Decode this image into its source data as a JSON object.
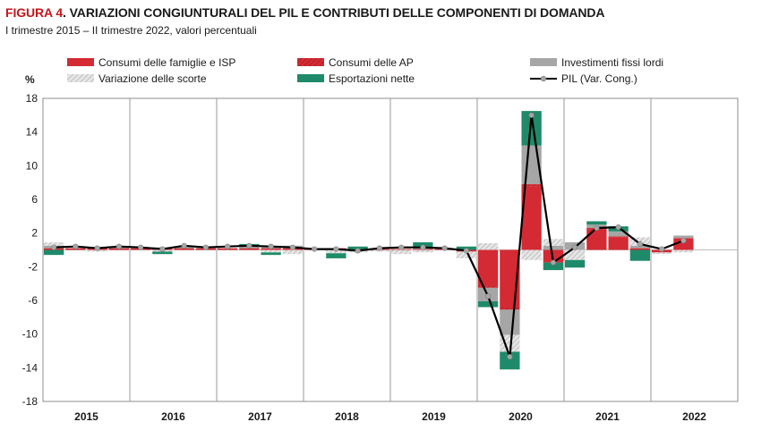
{
  "header": {
    "figure_label": "FIGURA 4",
    "title": ". VARIAZIONI CONGIUNTURALI DEL PIL E CONTRIBUTI DELLE COMPONENTI DI DOMANDA",
    "subtitle": "I trimestre 2015 – II trimestre 2022, valori percentuali"
  },
  "colors": {
    "consumi_famiglie": "#d42a33",
    "consumi_ap": "#c8333a",
    "investimenti": "#a6a6a6",
    "scorte": "#d4d4d4",
    "esportazioni": "#1f8a6a",
    "pil": "#000000"
  },
  "chart_data": {
    "type": "bar",
    "ylabel": "%",
    "ylim": [
      -18,
      18
    ],
    "yticks": [
      18,
      14,
      10,
      6,
      2,
      -2,
      -6,
      -10,
      -14,
      -18
    ],
    "years": [
      "2015",
      "2016",
      "2017",
      "2018",
      "2019",
      "2020",
      "2021",
      "2022"
    ],
    "grid": "vertical lines between years",
    "legend_position": "top",
    "categories": [
      "2015Q1",
      "2015Q2",
      "2015Q3",
      "2015Q4",
      "2016Q1",
      "2016Q2",
      "2016Q3",
      "2016Q4",
      "2017Q1",
      "2017Q2",
      "2017Q3",
      "2017Q4",
      "2018Q1",
      "2018Q2",
      "2018Q3",
      "2018Q4",
      "2019Q1",
      "2019Q2",
      "2019Q3",
      "2019Q4",
      "2020Q1",
      "2020Q2",
      "2020Q3",
      "2020Q4",
      "2021Q1",
      "2021Q2",
      "2021Q3",
      "2021Q4",
      "2022Q1",
      "2022Q2"
    ],
    "series": [
      {
        "name": "Consumi delle famiglie e ISP",
        "key": "consumi_famiglie",
        "kind": "bar",
        "values": [
          0.2,
          0.2,
          0.2,
          0.2,
          0.2,
          0.2,
          0.2,
          0.2,
          0.2,
          0.2,
          0.2,
          0.2,
          0.2,
          0.2,
          0.0,
          0.1,
          0.1,
          0.1,
          0.1,
          -0.2,
          -4.2,
          -6.8,
          7.5,
          -1.5,
          0.0,
          2.4,
          1.5,
          0.2,
          -0.3,
          1.4
        ]
      },
      {
        "name": "Consumi delle AP",
        "key": "consumi_ap",
        "kind": "bar",
        "values": [
          0.0,
          0.0,
          0.0,
          0.0,
          0.0,
          0.0,
          0.0,
          0.0,
          0.0,
          0.0,
          0.0,
          0.0,
          0.0,
          0.0,
          0.0,
          0.0,
          0.0,
          0.0,
          0.0,
          0.0,
          -0.3,
          -0.3,
          0.3,
          0.0,
          0.0,
          0.2,
          0.1,
          0.0,
          0.0,
          0.0
        ]
      },
      {
        "name": "Investimenti fissi lordi",
        "key": "investimenti",
        "kind": "bar",
        "values": [
          0.3,
          0.0,
          0.0,
          0.2,
          0.1,
          0.1,
          0.2,
          0.2,
          0.0,
          0.3,
          0.3,
          0.3,
          0.0,
          0.0,
          0.0,
          0.0,
          0.0,
          0.1,
          0.1,
          0.0,
          -1.6,
          -3.0,
          4.6,
          0.5,
          0.9,
          0.4,
          0.6,
          0.3,
          0.0,
          0.3
        ]
      },
      {
        "name": "Variazione delle scorte",
        "key": "scorte",
        "kind": "bar",
        "values": [
          0.4,
          0.0,
          -0.2,
          0.0,
          0.0,
          -0.2,
          0.0,
          0.0,
          0.0,
          0.0,
          -0.3,
          -0.5,
          0.0,
          -0.4,
          -0.3,
          -0.2,
          -0.5,
          -0.3,
          0.0,
          -0.8,
          0.8,
          -2.0,
          -1.2,
          0.8,
          -1.2,
          0.0,
          0.0,
          1.0,
          -0.2,
          -0.3
        ]
      },
      {
        "name": "Esportazioni nette",
        "key": "esportazioni",
        "kind": "bar",
        "values": [
          -0.6,
          0.0,
          0.0,
          0.0,
          0.0,
          -0.3,
          0.0,
          0.0,
          0.0,
          0.2,
          -0.3,
          0.0,
          0.0,
          -0.6,
          0.4,
          0.0,
          0.0,
          0.7,
          0.0,
          0.4,
          -0.7,
          -2.1,
          4.1,
          -0.9,
          -0.9,
          0.4,
          0.6,
          -1.3,
          0.0,
          0.0
        ]
      },
      {
        "name": "PIL (Var. Cong.)",
        "key": "pil",
        "kind": "line",
        "values": [
          0.3,
          0.4,
          0.2,
          0.4,
          0.3,
          0.1,
          0.5,
          0.3,
          0.4,
          0.5,
          0.4,
          0.3,
          0.1,
          0.1,
          -0.1,
          0.2,
          0.3,
          0.3,
          0.2,
          -0.1,
          -5.5,
          -12.7,
          16.0,
          -1.5,
          0.3,
          2.6,
          2.7,
          0.7,
          0.1,
          1.1
        ]
      }
    ]
  }
}
